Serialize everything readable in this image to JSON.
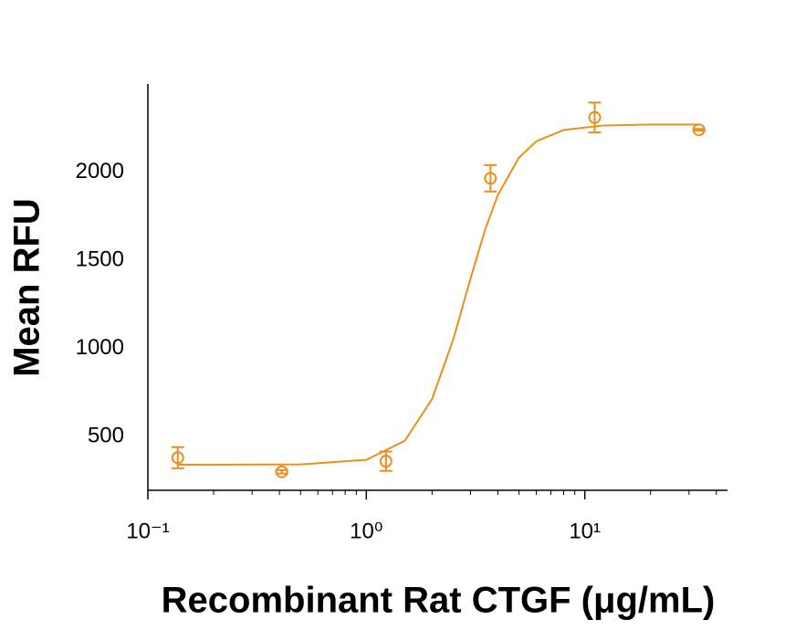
{
  "chart_data": {
    "type": "scatter",
    "x_label": "Recombinant Rat CTGF (μg/mL)",
    "y_label": "Mean RFU",
    "xscale": "log",
    "xlim": [
      0.1,
      45
    ],
    "ylim": [
      195,
      2500
    ],
    "xticks": [
      {
        "value": 0.1,
        "label": "10⁻¹"
      },
      {
        "value": 1,
        "label": "10⁰"
      },
      {
        "value": 10,
        "label": "10¹"
      }
    ],
    "xminor_ticks": [
      0.2,
      0.3,
      0.4,
      0.5,
      0.6,
      0.7,
      0.8,
      0.9,
      2,
      3,
      4,
      5,
      6,
      7,
      8,
      9,
      20,
      30,
      40
    ],
    "yticks": [
      500,
      1000,
      1500,
      2000
    ],
    "color": "#e8901c",
    "series": [
      {
        "x": [
          0.137,
          0.41,
          1.23,
          3.7,
          11.1,
          33.3
        ],
        "values": [
          380,
          300,
          360,
          1965,
          2310,
          2240
        ],
        "errors": [
          60,
          10,
          55,
          75,
          85,
          5
        ]
      }
    ],
    "fit": {
      "x": [
        0.137,
        0.5,
        1,
        1.5,
        2,
        2.5,
        3,
        3.5,
        4,
        5,
        6,
        8,
        12,
        20,
        33.3
      ],
      "values": [
        340,
        342,
        368,
        476,
        713,
        1051,
        1397,
        1675,
        1870,
        2083,
        2175,
        2239,
        2264,
        2270,
        2270
      ]
    }
  }
}
